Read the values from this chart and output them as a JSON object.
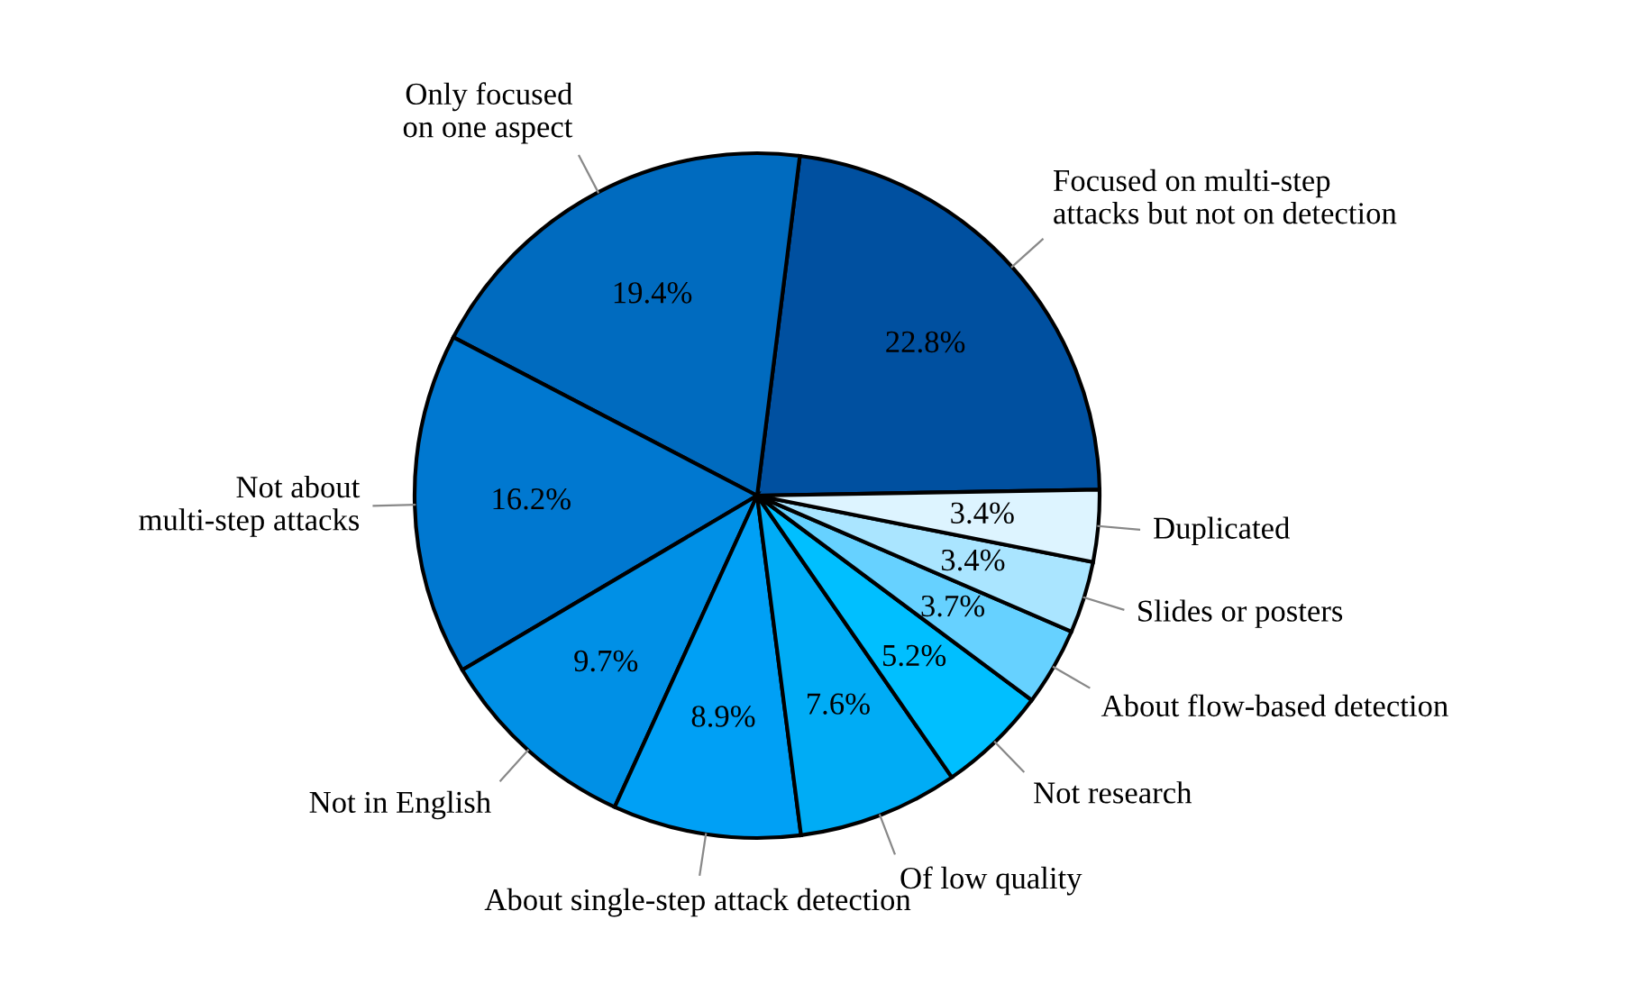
{
  "chart_data": {
    "type": "pie",
    "categories": [
      "Focused on multi-step\nattacks but not on detection",
      "Only focused\non one aspect",
      "Not about\nmulti-step attacks",
      "Not in English",
      "About single-step attack detection",
      "Of low quality",
      "Not research",
      "About flow-based detection",
      "Slides or posters",
      "Duplicated"
    ],
    "values": [
      22.8,
      19.4,
      16.2,
      9.7,
      8.9,
      7.6,
      5.2,
      3.7,
      3.4,
      3.4
    ],
    "value_labels": [
      "22.8%",
      "19.4%",
      "16.2%",
      "9.7%",
      "8.9%",
      "7.6%",
      "5.2%",
      "3.7%",
      "3.4%",
      "3.4%"
    ],
    "colors": [
      "#0050a0",
      "#006bbf",
      "#0078d0",
      "#0090e6",
      "#00a0f5",
      "#00acf5",
      "#00bfff",
      "#66d1ff",
      "#aae5ff",
      "#ddf4ff"
    ],
    "legend": false
  }
}
